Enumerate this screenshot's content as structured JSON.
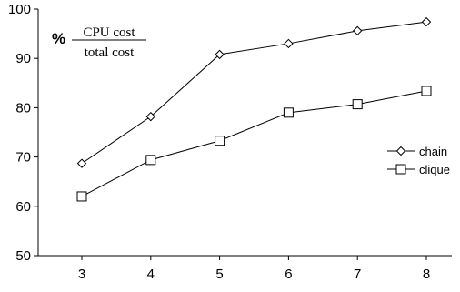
{
  "chart_data": {
    "type": "line",
    "x": [
      3,
      4,
      5,
      6,
      7,
      8
    ],
    "xticks": [
      "3",
      "4",
      "5",
      "6",
      "7",
      "8"
    ],
    "yticks": [
      "50",
      "60",
      "70",
      "80",
      "90",
      "100"
    ],
    "ylim": [
      50,
      100
    ],
    "ylabel": {
      "prefix": "%",
      "numerator": "CPU cost",
      "denominator": "total cost"
    },
    "legend_position": "right",
    "grid": false,
    "series": [
      {
        "name": "chain",
        "marker": "diamond",
        "values": [
          68.7,
          78.2,
          90.8,
          93.0,
          95.6,
          97.4
        ]
      },
      {
        "name": "clique",
        "marker": "square",
        "values": [
          62.0,
          69.4,
          73.3,
          79.0,
          80.7,
          83.4
        ]
      }
    ]
  }
}
